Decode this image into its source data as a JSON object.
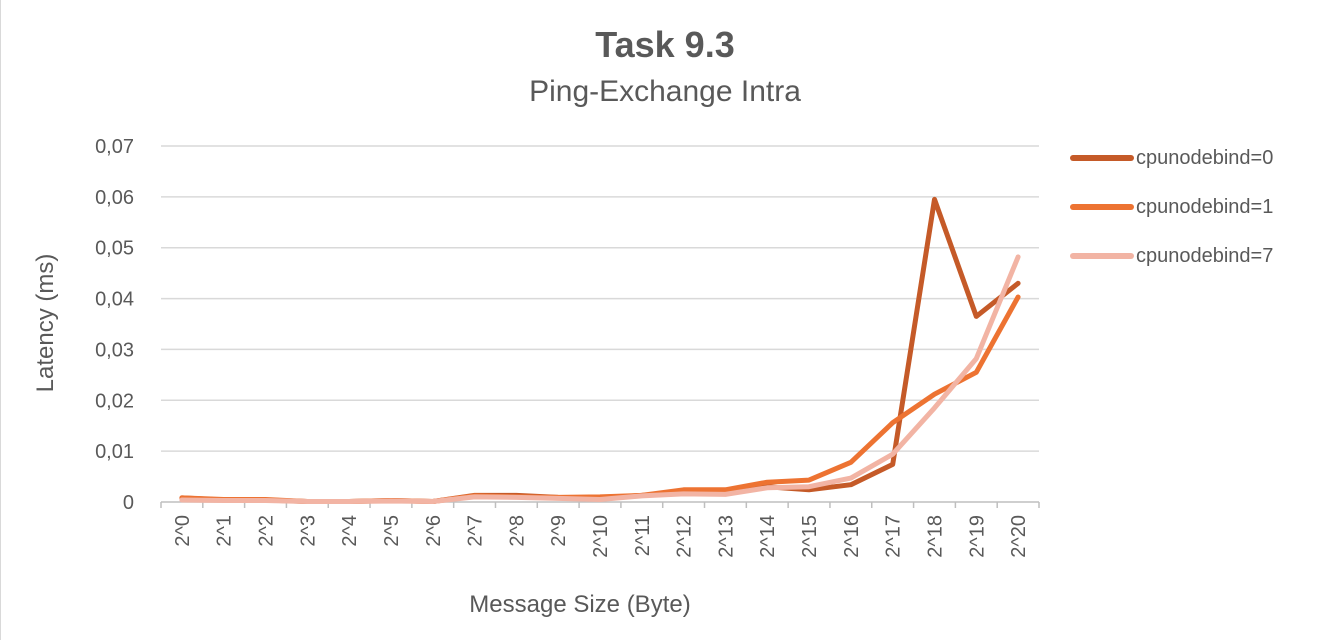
{
  "chart_data": {
    "type": "line",
    "title": "Task 9.3",
    "subtitle": "Ping-Exchange Intra",
    "xlabel": "Message Size (Byte)",
    "ylabel": "Latency (ms)",
    "ylim": [
      0,
      0.07
    ],
    "yticks": [
      0,
      0.01,
      0.02,
      0.03,
      0.04,
      0.05,
      0.06,
      0.07
    ],
    "ytick_labels": [
      "0",
      "0,01",
      "0,02",
      "0,03",
      "0,04",
      "0,05",
      "0,06",
      "0,07"
    ],
    "grid": true,
    "legend_position": "right",
    "categories": [
      "2^0",
      "2^1",
      "2^2",
      "2^3",
      "2^4",
      "2^5",
      "2^6",
      "2^7",
      "2^8",
      "2^9",
      "2^10",
      "2^11",
      "2^12",
      "2^13",
      "2^14",
      "2^15",
      "2^16",
      "2^17",
      "2^18",
      "2^19",
      "2^20"
    ],
    "series": [
      {
        "name": "cpunodebind=0",
        "color": "#c55a28",
        "values": [
          0.0008,
          0.0004,
          0.0004,
          0.0001,
          0.0001,
          0.0003,
          0.0001,
          0.0013,
          0.0013,
          0.0009,
          0.0008,
          0.0013,
          0.0017,
          0.0017,
          0.003,
          0.0024,
          0.0034,
          0.0074,
          0.0595,
          0.0365,
          0.043
        ]
      },
      {
        "name": "cpunodebind=1",
        "color": "#ed7332",
        "values": [
          0.0008,
          0.0005,
          0.0005,
          0.0001,
          0.0001,
          0.0003,
          0.0001,
          0.0012,
          0.001,
          0.0009,
          0.001,
          0.0013,
          0.0024,
          0.0024,
          0.0039,
          0.0043,
          0.0078,
          0.0156,
          0.0212,
          0.0255,
          0.0403
        ]
      },
      {
        "name": "cpunodebind=7",
        "color": "#f2b4a4",
        "values": [
          0.0004,
          0.0003,
          0.0003,
          0.0001,
          0.0001,
          0.0002,
          0.0001,
          0.001,
          0.0009,
          0.0007,
          0.0005,
          0.0012,
          0.0016,
          0.0015,
          0.0028,
          0.003,
          0.0047,
          0.0094,
          0.0185,
          0.0282,
          0.0482
        ]
      }
    ]
  }
}
